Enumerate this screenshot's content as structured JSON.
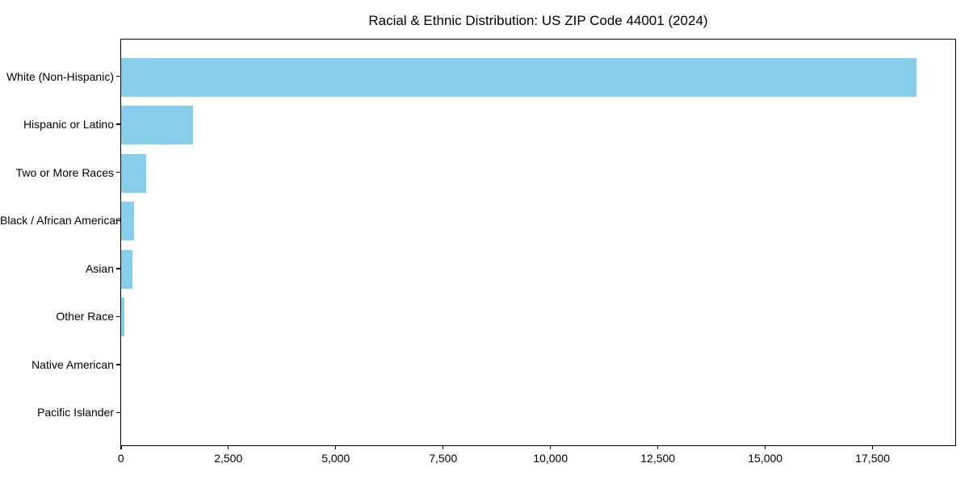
{
  "title": "Racial & Ethnic Distribution: US ZIP Code 44001 (2024)",
  "chart_data": {
    "type": "bar",
    "orientation": "horizontal",
    "title": "Racial & Ethnic Distribution: US ZIP Code 44001 (2024)",
    "categories": [
      "White (Non-Hispanic)",
      "Hispanic or Latino",
      "Two or More Races",
      "Black / African American",
      "Asian",
      "Other Race",
      "Native American",
      "Pacific Islander"
    ],
    "values": [
      18500,
      1665,
      580,
      295,
      270,
      70,
      0,
      0
    ],
    "xlabel": "",
    "ylabel": "",
    "xlim": [
      0,
      19400
    ],
    "xticks": [
      0,
      2500,
      5000,
      7500,
      10000,
      12500,
      15000,
      17500
    ],
    "xtick_labels": [
      "0",
      "2,500",
      "5,000",
      "7,500",
      "10,000",
      "12,500",
      "15,000",
      "17,500"
    ],
    "grid": false,
    "legend": "none",
    "bar_color": "#87CEEB"
  },
  "colors": {
    "bar": "#87CEEB",
    "axis": "#000000",
    "text": "#000000",
    "background": "#ffffff"
  }
}
